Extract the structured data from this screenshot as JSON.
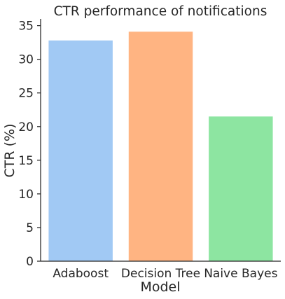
{
  "chart_data": {
    "type": "bar",
    "title": "CTR performance of notifications",
    "xlabel": "Model",
    "ylabel": "CTR (%)",
    "categories": [
      "Adaboost",
      "Decision Tree",
      "Naive Bayes"
    ],
    "values": [
      32.8,
      34.1,
      21.5
    ],
    "colors": [
      "#a1c9f4",
      "#ffb482",
      "#8de5a1"
    ],
    "ylim": [
      0,
      36
    ],
    "yticks": [
      0,
      5,
      10,
      15,
      20,
      25,
      30,
      35
    ],
    "grid": false,
    "legend": "none"
  }
}
